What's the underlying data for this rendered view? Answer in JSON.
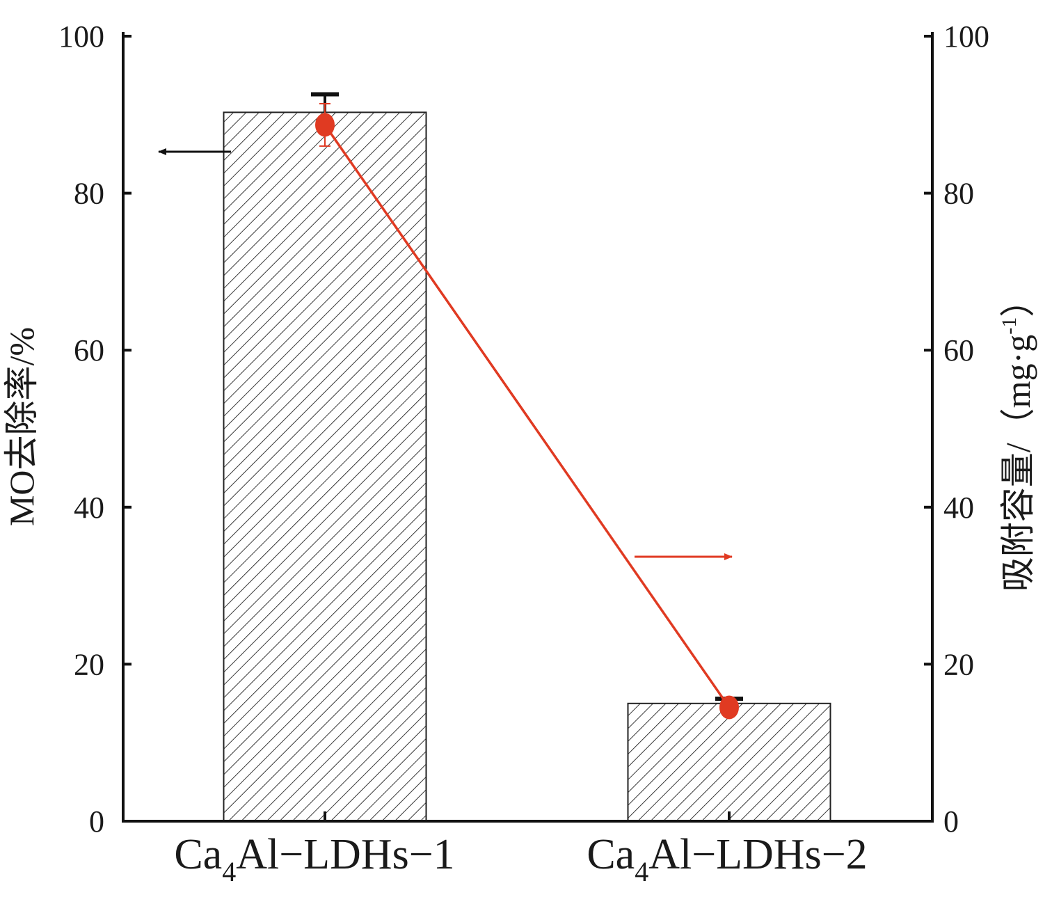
{
  "chart_data": {
    "type": "bar",
    "categories": [
      {
        "base": "Ca",
        "sub": "4",
        "rest": "Al−LDHs−1"
      },
      {
        "base": "Ca",
        "sub": "4",
        "rest": "Al−LDHs−2"
      }
    ],
    "ylabel_left": "MO去除率/%",
    "ylabel_right": {
      "base": "吸附容量/（mg·g",
      "sup": "-1",
      "tail": "）"
    },
    "ylim": [
      0,
      100
    ],
    "yticks": [
      "0",
      "20",
      "40",
      "60",
      "80",
      "100"
    ],
    "series": [
      {
        "axis": "left",
        "kind": "bar",
        "pattern": "diagonal-hatch",
        "values": [
          90.3,
          15.0
        ],
        "errors": [
          2.3,
          0.6
        ]
      },
      {
        "axis": "right",
        "kind": "line",
        "color": "#e03a22",
        "values": [
          88.7,
          14.5
        ],
        "errors": [
          2.7,
          0.3
        ]
      }
    ]
  }
}
